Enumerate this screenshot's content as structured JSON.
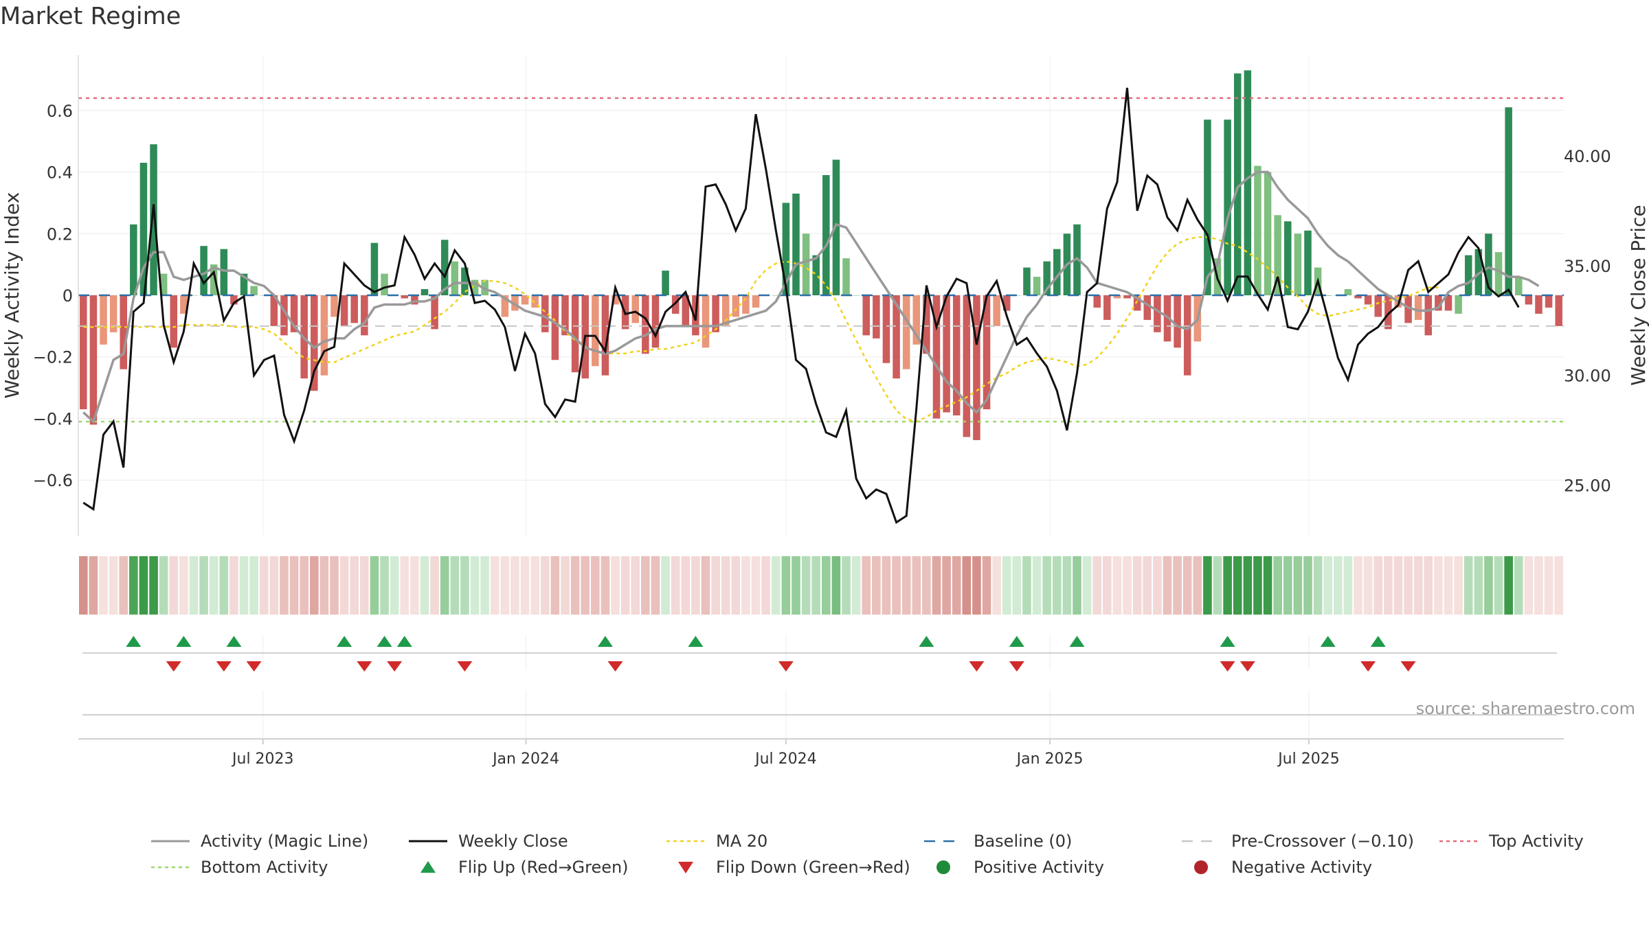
{
  "chart_data": {
    "type": "bar",
    "title": "Market Regime",
    "ylabel_left": "Weekly Activity Index",
    "ylabel_right": "Weekly Close Price",
    "source": "source: sharemaestro.com",
    "yticks_left": [
      "0.6",
      "0.4",
      "0.2",
      "0",
      "−0.2",
      "−0.4",
      "−0.6"
    ],
    "ytick_values_left": [
      0.6,
      0.4,
      0.2,
      0,
      -0.2,
      -0.4,
      -0.6
    ],
    "yticks_right": [
      "40.00",
      "35.00",
      "30.00",
      "25.00"
    ],
    "ytick_values_right": [
      40,
      35,
      30,
      25
    ],
    "ylim_left": [
      -0.78,
      0.78
    ],
    "ylim_right": [
      22.7,
      44.6
    ],
    "x_ticks": [
      "Jul 2023",
      "Jan 2024",
      "Jul 2024",
      "Jan 2025",
      "Jul 2025"
    ],
    "x_tick_weeks": [
      17.9,
      44.1,
      70.0,
      96.3,
      122.1
    ],
    "grid": true,
    "levels": {
      "top": 0.64,
      "bottom": -0.41,
      "pre_crossover": -0.1,
      "baseline": 0
    },
    "activity_index": [
      -0.37,
      -0.42,
      -0.16,
      -0.12,
      -0.24,
      0.23,
      0.43,
      0.49,
      0.07,
      -0.17,
      -0.06,
      0.0,
      0.16,
      0.1,
      0.15,
      -0.03,
      0.07,
      0.03,
      0.0,
      -0.1,
      -0.13,
      -0.12,
      -0.27,
      -0.31,
      -0.26,
      -0.07,
      -0.1,
      -0.09,
      -0.13,
      0.17,
      0.07,
      0.0,
      -0.01,
      -0.03,
      0.02,
      -0.11,
      0.18,
      0.11,
      0.09,
      0.05,
      0.05,
      0.0,
      -0.07,
      -0.05,
      -0.03,
      -0.04,
      -0.12,
      -0.21,
      -0.13,
      -0.25,
      -0.27,
      -0.23,
      -0.26,
      -0.03,
      -0.11,
      -0.09,
      -0.19,
      -0.17,
      0.08,
      -0.06,
      -0.1,
      -0.13,
      -0.17,
      -0.12,
      -0.1,
      -0.07,
      -0.06,
      -0.04,
      0.0,
      0.0,
      0.3,
      0.33,
      0.2,
      0.13,
      0.39,
      0.44,
      0.12,
      0.0,
      -0.13,
      -0.14,
      -0.22,
      -0.27,
      -0.24,
      -0.16,
      -0.19,
      -0.4,
      -0.38,
      -0.39,
      -0.46,
      -0.47,
      -0.37,
      -0.1,
      -0.05,
      0.0,
      0.09,
      0.06,
      0.11,
      0.15,
      0.2,
      0.23,
      0.0,
      -0.04,
      -0.08,
      -0.01,
      -0.01,
      -0.05,
      -0.08,
      -0.12,
      -0.15,
      -0.17,
      -0.26,
      -0.15,
      0.57,
      0.12,
      0.57,
      0.72,
      0.73,
      0.42,
      0.4,
      0.26,
      0.24,
      0.2,
      0.21,
      0.09,
      0.0,
      0.0,
      0.02,
      -0.01,
      -0.03,
      -0.07,
      -0.11,
      -0.04,
      -0.09,
      -0.08,
      -0.13,
      -0.05,
      -0.05,
      -0.06,
      0.13,
      0.15,
      0.2,
      0.14,
      0.61,
      0.06,
      -0.03,
      -0.06,
      -0.04,
      -0.1
    ],
    "activity_colors": [
      "r",
      "r",
      "s",
      "s",
      "r",
      "g",
      "g",
      "g",
      "l",
      "r",
      "s",
      "l",
      "g",
      "l",
      "g",
      "r",
      "g",
      "l",
      "l",
      "r",
      "r",
      "r",
      "r",
      "r",
      "s",
      "s",
      "r",
      "r",
      "r",
      "g",
      "l",
      "l",
      "r",
      "r",
      "g",
      "r",
      "g",
      "l",
      "g",
      "l",
      "l",
      "l",
      "s",
      "s",
      "s",
      "s",
      "r",
      "r",
      "r",
      "r",
      "r",
      "s",
      "r",
      "s",
      "r",
      "s",
      "r",
      "r",
      "g",
      "r",
      "r",
      "r",
      "s",
      "r",
      "s",
      "s",
      "s",
      "s",
      "r",
      "l",
      "g",
      "g",
      "l",
      "g",
      "g",
      "g",
      "l",
      "l",
      "r",
      "r",
      "r",
      "r",
      "s",
      "s",
      "r",
      "r",
      "r",
      "r",
      "r",
      "r",
      "r",
      "s",
      "r",
      "l",
      "g",
      "l",
      "g",
      "g",
      "g",
      "g",
      "l",
      "r",
      "r",
      "s",
      "r",
      "r",
      "r",
      "r",
      "r",
      "r",
      "r",
      "s",
      "g",
      "l",
      "g",
      "g",
      "g",
      "l",
      "l",
      "l",
      "g",
      "l",
      "g",
      "l",
      "g",
      "l",
      "l",
      "r",
      "r",
      "r",
      "r",
      "s",
      "r",
      "s",
      "r",
      "r",
      "r",
      "l",
      "g",
      "g",
      "g",
      "l",
      "g",
      "l",
      "r",
      "r",
      "r",
      "r"
    ],
    "activity_strips": [
      "r4",
      "r3",
      "s3",
      "s2",
      "r2",
      "g3",
      "g4",
      "g5",
      "l2",
      "r1",
      "s1",
      "l1",
      "l2",
      "l1",
      "l2",
      "r1",
      "l1",
      "l1",
      "r1",
      "r1",
      "r2",
      "r2",
      "r2",
      "r3",
      "r2",
      "r2",
      "r1",
      "r1",
      "r1",
      "l3",
      "l2",
      "l1",
      "s1",
      "s1",
      "l1",
      "r1",
      "l3",
      "l2",
      "l2",
      "l1",
      "l1",
      "s1",
      "s1",
      "s1",
      "s1",
      "s1",
      "r1",
      "r2",
      "r1",
      "r2",
      "r2",
      "r2",
      "r2",
      "s1",
      "r1",
      "r1",
      "r2",
      "r2",
      "l1",
      "r1",
      "r1",
      "r1",
      "r2",
      "r1",
      "r1",
      "r1",
      "s1",
      "s1",
      "r1",
      "l1",
      "l3",
      "l3",
      "l2",
      "l2",
      "l3",
      "l4",
      "l2",
      "l1",
      "r2",
      "r2",
      "r2",
      "r2",
      "r2",
      "r2",
      "r2",
      "r3",
      "r3",
      "r3",
      "r4",
      "r4",
      "r3",
      "s1",
      "l1",
      "l1",
      "l2",
      "l1",
      "l2",
      "l2",
      "l2",
      "l3",
      "l1",
      "r1",
      "r1",
      "s1",
      "s1",
      "r1",
      "r1",
      "r1",
      "r2",
      "r2",
      "r2",
      "r2",
      "g4",
      "l2",
      "g5",
      "g6",
      "g6",
      "g4",
      "g4",
      "l3",
      "l3",
      "l3",
      "l3",
      "l2",
      "l1",
      "l1",
      "l1",
      "s1",
      "s1",
      "r1",
      "r1",
      "r1",
      "r1",
      "r1",
      "r1",
      "s1",
      "s1",
      "s1",
      "l2",
      "l2",
      "l3",
      "l2",
      "g4",
      "l2",
      "s1",
      "s1",
      "s1",
      "s1"
    ],
    "weekly_close": [
      24.2,
      23.9,
      27.3,
      27.9,
      25.8,
      32.9,
      33.3,
      37.8,
      32.3,
      30.6,
      32.0,
      35.1,
      34.2,
      34.7,
      32.5,
      33.3,
      33.6,
      30.0,
      30.7,
      30.9,
      28.2,
      27.0,
      28.4,
      30.2,
      31.1,
      31.3,
      35.1,
      34.6,
      34.1,
      33.8,
      34.0,
      34.1,
      36.3,
      35.5,
      34.4,
      35.1,
      34.5,
      35.7,
      35.1,
      33.3,
      33.4,
      33.0,
      32.2,
      30.2,
      31.9,
      31.0,
      28.7,
      28.1,
      28.9,
      28.8,
      31.8,
      31.8,
      31.1,
      34.0,
      32.8,
      32.9,
      32.6,
      31.8,
      32.9,
      33.3,
      33.8,
      32.5,
      38.6,
      38.7,
      37.8,
      36.6,
      37.6,
      41.9,
      39.4,
      36.6,
      34.0,
      30.7,
      30.3,
      28.7,
      27.4,
      27.2,
      28.4,
      25.3,
      24.4,
      24.8,
      24.6,
      23.3,
      23.6,
      28.5,
      34.1,
      32.2,
      33.6,
      34.4,
      34.2,
      31.4,
      33.6,
      34.3,
      32.7,
      31.4,
      31.7,
      31.0,
      30.4,
      29.3,
      27.5,
      30.1,
      33.8,
      34.2,
      37.6,
      38.8,
      43.1,
      37.5,
      39.1,
      38.7,
      37.2,
      36.6,
      38.0,
      37.1,
      36.4,
      34.4,
      33.4,
      34.5,
      34.5,
      33.7,
      33.0,
      34.5,
      32.2,
      32.1,
      32.9,
      34.3,
      32.6,
      30.8,
      29.8,
      31.4,
      31.9,
      32.2,
      32.8,
      33.2,
      34.8,
      35.2,
      33.8,
      34.2,
      34.6,
      35.6,
      36.3,
      35.8,
      34.0,
      33.6,
      33.9,
      33.1
    ],
    "magic_line": [
      -0.38,
      -0.41,
      -0.31,
      -0.21,
      -0.19,
      -0.01,
      0.09,
      0.14,
      0.14,
      0.06,
      0.05,
      0.06,
      0.07,
      0.09,
      0.08,
      0.08,
      0.06,
      0.04,
      0.03,
      0.0,
      -0.05,
      -0.1,
      -0.14,
      -0.17,
      -0.15,
      -0.14,
      -0.14,
      -0.11,
      -0.09,
      -0.04,
      -0.03,
      -0.03,
      -0.03,
      -0.02,
      -0.02,
      -0.01,
      0.02,
      0.04,
      0.04,
      0.04,
      0.02,
      0.01,
      -0.01,
      -0.03,
      -0.05,
      -0.06,
      -0.07,
      -0.09,
      -0.11,
      -0.14,
      -0.17,
      -0.18,
      -0.19,
      -0.18,
      -0.16,
      -0.14,
      -0.13,
      -0.11,
      -0.1,
      -0.1,
      -0.1,
      -0.1,
      -0.1,
      -0.1,
      -0.09,
      -0.08,
      -0.07,
      -0.06,
      -0.05,
      -0.02,
      0.04,
      0.1,
      0.11,
      0.12,
      0.16,
      0.23,
      0.22,
      0.17,
      0.12,
      0.07,
      0.02,
      -0.03,
      -0.08,
      -0.13,
      -0.18,
      -0.23,
      -0.28,
      -0.31,
      -0.35,
      -0.38,
      -0.34,
      -0.27,
      -0.2,
      -0.13,
      -0.07,
      -0.03,
      0.02,
      0.06,
      0.1,
      0.12,
      0.09,
      0.04,
      0.03,
      0.02,
      0.01,
      -0.01,
      -0.03,
      -0.05,
      -0.07,
      -0.1,
      -0.11,
      -0.08,
      0.06,
      0.1,
      0.25,
      0.35,
      0.38,
      0.4,
      0.4,
      0.35,
      0.31,
      0.28,
      0.25,
      0.2,
      0.16,
      0.13,
      0.11,
      0.08,
      0.05,
      0.02,
      0.0,
      -0.02,
      -0.04,
      -0.05,
      -0.05,
      -0.04,
      0.01,
      0.03,
      0.04,
      0.07,
      0.09,
      0.08,
      0.06,
      0.06,
      0.05,
      0.03
    ],
    "ma20": [
      32.2,
      32.2,
      32.2,
      32.2,
      32.2,
      32.2,
      32.2,
      32.2,
      32.2,
      32.2,
      32.3,
      32.3,
      32.3,
      32.3,
      32.3,
      32.2,
      32.2,
      32.2,
      32.1,
      31.9,
      31.5,
      31.1,
      30.8,
      30.7,
      30.6,
      30.6,
      30.8,
      31.0,
      31.2,
      31.4,
      31.6,
      31.8,
      31.9,
      32.0,
      32.3,
      32.6,
      32.9,
      33.3,
      33.8,
      34.1,
      34.3,
      34.3,
      34.2,
      34.0,
      33.7,
      33.3,
      32.9,
      32.5,
      32.0,
      31.6,
      31.3,
      31.1,
      31.0,
      31.0,
      31.0,
      31.1,
      31.1,
      31.2,
      31.2,
      31.3,
      31.4,
      31.5,
      31.8,
      32.1,
      32.5,
      33.0,
      33.5,
      34.3,
      34.8,
      35.1,
      35.2,
      35.1,
      34.9,
      34.6,
      34.1,
      33.4,
      32.5,
      31.6,
      30.7,
      29.9,
      29.1,
      28.4,
      28.0,
      27.9,
      28.1,
      28.4,
      28.6,
      28.8,
      29.0,
      29.3,
      29.6,
      29.9,
      30.1,
      30.4,
      30.6,
      30.7,
      30.8,
      30.7,
      30.6,
      30.4,
      30.5,
      30.8,
      31.3,
      31.9,
      32.6,
      33.4,
      34.2,
      35.0,
      35.6,
      36.0,
      36.2,
      36.3,
      36.3,
      36.2,
      36.0,
      35.9,
      35.6,
      35.3,
      34.9,
      34.5,
      34.0,
      33.6,
      33.1,
      32.8,
      32.7,
      32.8,
      32.9,
      33.0,
      33.1,
      33.3,
      33.4,
      33.5,
      33.6,
      33.8,
      34.0,
      34.0
    ],
    "flip_up_weeks": [
      5,
      10,
      15,
      26,
      30,
      32,
      52,
      61,
      84,
      93,
      99,
      114,
      124,
      129
    ],
    "flip_down_weeks": [
      9,
      14,
      17,
      28,
      31,
      38,
      53,
      70,
      89,
      93,
      114,
      116,
      128,
      132
    ],
    "legend": [
      {
        "label": "Activity (Magic Line)",
        "kind": "line",
        "color": "#999999"
      },
      {
        "label": "Weekly Close",
        "kind": "line",
        "color": "#111111"
      },
      {
        "label": "MA 20",
        "kind": "dotted",
        "color": "#f2d21c"
      },
      {
        "label": "Baseline (0)",
        "kind": "dashed",
        "color": "#2a6fa8"
      },
      {
        "label": "Pre-Crossover (−0.10)",
        "kind": "dashed",
        "color": "#c7c7c7"
      },
      {
        "label": "Top Activity",
        "kind": "dotted",
        "color": "#e36d7d"
      },
      {
        "label": "Bottom Activity",
        "kind": "dotted",
        "color": "#9fd86a"
      },
      {
        "label": "Flip Up (Red→Green)",
        "kind": "tri-up",
        "color": "#1f9a4a"
      },
      {
        "label": "Flip Down (Green→Red)",
        "kind": "tri-down",
        "color": "#d12a2a"
      },
      {
        "label": "Positive Activity",
        "kind": "dot",
        "color": "#1f8a3a"
      },
      {
        "label": "Negative Activity",
        "kind": "dot",
        "color": "#b2242c"
      }
    ],
    "colors": {
      "strong_green": "#2e8b57",
      "light_green": "#7fbf7f",
      "strong_red": "#cd5c5c",
      "light_red": "#e9967a"
    }
  }
}
